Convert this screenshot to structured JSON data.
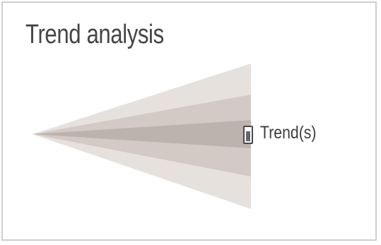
{
  "title": "Trend analysis",
  "legend": {
    "label": "Trend(s)",
    "icon": "trend-swatch-icon"
  },
  "colors": {
    "outer_band": "#e7e1dd",
    "middle_band": "#d3cac5",
    "inner_band": "#bdb3ae",
    "border": "#cfcfcf",
    "text": "#454545"
  }
}
